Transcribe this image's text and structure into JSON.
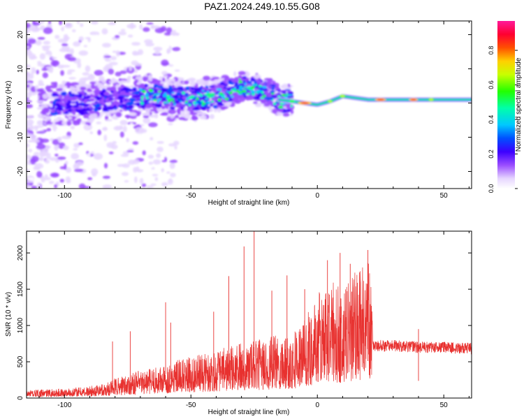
{
  "figure": {
    "title": "PAZ1.2024.249.10.55.G08"
  },
  "chart_data": [
    {
      "type": "heatmap",
      "xlabel": "Height of straight line (km)",
      "ylabel": "Frequency (Hz)",
      "xlim": [
        -115,
        61
      ],
      "ylim": [
        -25,
        24
      ],
      "x_ticks": [
        -100,
        -50,
        0,
        50
      ],
      "y_ticks": [
        -20,
        -10,
        0,
        10,
        20
      ],
      "colorbar": {
        "label": "Normalized spectral amplitude",
        "range": [
          0,
          0.97
        ],
        "ticks": [
          0.0,
          0.2,
          0.4,
          0.6,
          0.8
        ],
        "tick_labels": [
          "0.0",
          "0.2",
          "0.4",
          "0.6",
          "0.8"
        ],
        "colormap": "rainbow-white-purple-blue-cyan-green-yellow-red-magenta"
      },
      "ridge": {
        "x": [
          -100,
          -90,
          -80,
          -70,
          -60,
          -50,
          -40,
          -30,
          -25,
          -20,
          -15,
          -10,
          -5,
          0,
          5,
          10,
          20,
          30,
          40,
          50,
          61
        ],
        "y": [
          0,
          0,
          1,
          2,
          2,
          1,
          2,
          5,
          4,
          3,
          1,
          0.5,
          0,
          -0.5,
          0.5,
          2,
          1,
          1,
          1,
          1,
          1
        ]
      }
    },
    {
      "type": "line",
      "xlabel": "Height of straight line (km)",
      "ylabel": "SNR (10 * v/v)",
      "xlim": [
        -115,
        61
      ],
      "ylim": [
        0,
        2300
      ],
      "x_ticks": [
        -100,
        -50,
        0,
        50
      ],
      "y_ticks": [
        0,
        500,
        1000,
        1500,
        2000
      ],
      "series": [
        {
          "color": "#e8312f",
          "envelope_x": [
            -115,
            -100,
            -90,
            -85,
            -80,
            -75,
            -70,
            -65,
            -60,
            -55,
            -50,
            -45,
            -40,
            -35,
            -30,
            -25,
            -20,
            -15,
            -10,
            -5,
            0,
            5,
            10,
            15,
            20,
            21,
            22,
            30,
            40,
            50,
            61
          ],
          "envelope_y": [
            100,
            120,
            150,
            180,
            250,
            300,
            350,
            380,
            420,
            480,
            520,
            560,
            600,
            650,
            700,
            720,
            760,
            800,
            850,
            1000,
            1300,
            1500,
            1350,
            1600,
            1700,
            1750,
            720,
            720,
            700,
            700,
            680
          ],
          "spikes": [
            {
              "x": -81,
              "y": 780
            },
            {
              "x": -74,
              "y": 920
            },
            {
              "x": -60,
              "y": 1320
            },
            {
              "x": -58,
              "y": 1040
            },
            {
              "x": -41,
              "y": 1190
            },
            {
              "x": -35,
              "y": 1680
            },
            {
              "x": -29,
              "y": 2090
            },
            {
              "x": -25,
              "y": 2300
            },
            {
              "x": -18,
              "y": 1480
            },
            {
              "x": -12,
              "y": 1690
            },
            {
              "x": -5,
              "y": 1500
            },
            {
              "x": 4,
              "y": 1900
            },
            {
              "x": 9,
              "y": 2000
            },
            {
              "x": 13,
              "y": 1850
            },
            {
              "x": 20,
              "y": 2040
            },
            {
              "x": 40,
              "y": 950
            }
          ]
        }
      ]
    }
  ]
}
